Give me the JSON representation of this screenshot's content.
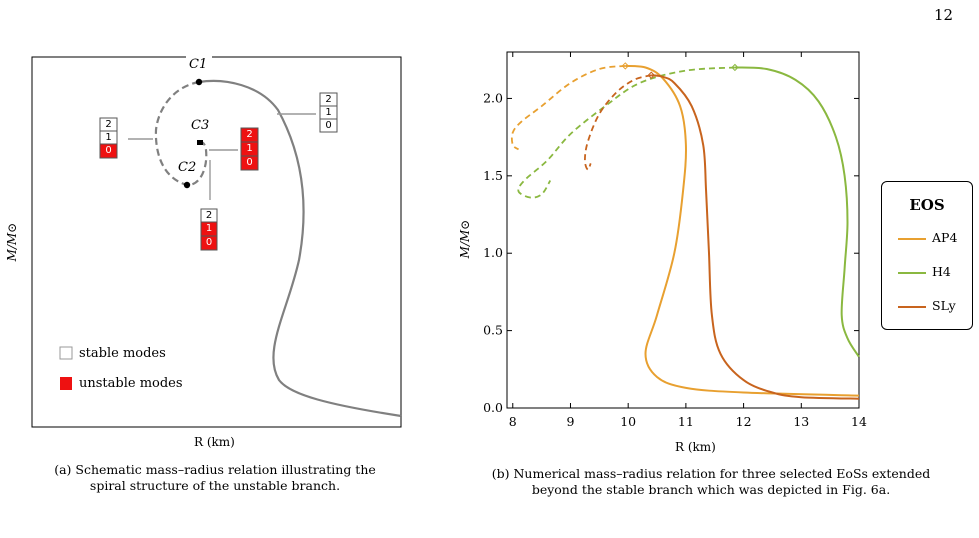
{
  "page_number": "12",
  "figure_a": {
    "caption_line1": "(a) Schematic mass–radius relation illustrating the",
    "caption_line2": "spiral structure of the unstable branch.",
    "xlabel": "R (km)",
    "ylabel": "M/M⊙",
    "points": {
      "c1": "C1",
      "c2": "C2",
      "c3": "C3"
    },
    "mode_labels": [
      "2",
      "1",
      "0"
    ],
    "legend": {
      "stable": "stable modes",
      "unstable": "unstable modes"
    },
    "colors": {
      "curve": "#808080",
      "unstable": "#ee1111",
      "stable": "#ffffff"
    }
  },
  "figure_b": {
    "caption_line1": "(b) Numerical mass–radius relation for three selected EoSs extended",
    "caption_line2": "beyond the stable branch which was depicted in Fig. 6a.",
    "legend_title": "EOS"
  },
  "chart_data": {
    "type": "line",
    "xlabel": "R (km)",
    "ylabel": "M/M⊙",
    "xlim": [
      7.9,
      14
    ],
    "ylim": [
      0,
      2.3
    ],
    "xticks": [
      8,
      9,
      10,
      11,
      12,
      13,
      14
    ],
    "yticks": [
      0.0,
      0.5,
      1.0,
      1.5,
      2.0
    ],
    "ytick_labels": [
      "0.0",
      "0.5",
      "1.0",
      "1.5",
      "2.0"
    ],
    "legend_position": "right, outside",
    "series": [
      {
        "name": "AP4",
        "color": "#e8a030",
        "stable": [
          [
            14,
            0.08
          ],
          [
            12,
            0.1
          ],
          [
            11,
            0.13
          ],
          [
            10.5,
            0.2
          ],
          [
            10.3,
            0.35
          ],
          [
            10.5,
            0.6
          ],
          [
            10.8,
            1.0
          ],
          [
            10.95,
            1.4
          ],
          [
            11,
            1.7
          ],
          [
            10.9,
            1.95
          ],
          [
            10.6,
            2.13
          ],
          [
            10.3,
            2.2
          ],
          [
            9.95,
            2.21
          ]
        ],
        "unstable": [
          [
            9.95,
            2.21
          ],
          [
            9.5,
            2.19
          ],
          [
            9,
            2.1
          ],
          [
            8.5,
            1.95
          ],
          [
            8.15,
            1.85
          ],
          [
            8.0,
            1.78
          ],
          [
            8.0,
            1.7
          ],
          [
            8.1,
            1.67
          ]
        ]
      },
      {
        "name": "H4",
        "color": "#8ab840",
        "stable": [
          [
            14,
            0.33
          ],
          [
            13.8,
            0.45
          ],
          [
            13.7,
            0.6
          ],
          [
            13.75,
            0.9
          ],
          [
            13.8,
            1.2
          ],
          [
            13.75,
            1.5
          ],
          [
            13.6,
            1.75
          ],
          [
            13.3,
            1.98
          ],
          [
            12.9,
            2.12
          ],
          [
            12.4,
            2.19
          ],
          [
            11.85,
            2.2
          ]
        ],
        "unstable": [
          [
            11.85,
            2.2
          ],
          [
            11,
            2.18
          ],
          [
            10.2,
            2.1
          ],
          [
            9.6,
            1.95
          ],
          [
            9.0,
            1.77
          ],
          [
            8.6,
            1.6
          ],
          [
            8.2,
            1.47
          ],
          [
            8.1,
            1.4
          ],
          [
            8.3,
            1.36
          ],
          [
            8.5,
            1.38
          ],
          [
            8.65,
            1.47
          ]
        ]
      },
      {
        "name": "SLy",
        "color": "#c8641e",
        "stable": [
          [
            14,
            0.06
          ],
          [
            13,
            0.07
          ],
          [
            12.5,
            0.1
          ],
          [
            12,
            0.18
          ],
          [
            11.6,
            0.35
          ],
          [
            11.45,
            0.6
          ],
          [
            11.4,
            1.0
          ],
          [
            11.35,
            1.4
          ],
          [
            11.3,
            1.7
          ],
          [
            11.1,
            1.95
          ],
          [
            10.8,
            2.1
          ],
          [
            10.6,
            2.14
          ],
          [
            10.4,
            2.15
          ]
        ],
        "unstable": [
          [
            10.4,
            2.15
          ],
          [
            10.1,
            2.12
          ],
          [
            9.8,
            2.04
          ],
          [
            9.5,
            1.9
          ],
          [
            9.3,
            1.72
          ],
          [
            9.25,
            1.6
          ],
          [
            9.3,
            1.54
          ],
          [
            9.35,
            1.58
          ]
        ]
      }
    ]
  }
}
